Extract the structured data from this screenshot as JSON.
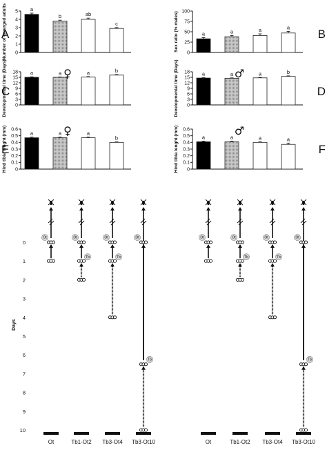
{
  "treatments": [
    "Ot",
    "Tb1-Ot2",
    "Tb3-Ot4",
    "Tb3-Ot10"
  ],
  "colors": {
    "bar_fills": [
      "#000000",
      "#c8c8c8",
      "#ffffff",
      "#ffffff"
    ],
    "stroke": "#222222"
  },
  "female_symbol": "♀",
  "male_symbol": "♂",
  "days_label": "Days",
  "day_ticks": [
    "0",
    "1",
    "2",
    "3",
    "4",
    "5",
    "6",
    "7",
    "8",
    "9",
    "10"
  ],
  "badges": {
    "ot": "Ot",
    "tb": "Tb"
  },
  "chart_data": [
    {
      "id": "A",
      "panel_label": "A",
      "type": "bar",
      "categories": [
        "Ot",
        "Tb1-Ot2",
        "Tb3-Ot4",
        "Tb3-Ot10"
      ],
      "values": [
        4.6,
        3.8,
        4.0,
        2.9
      ],
      "errors": [
        0.15,
        0.1,
        0.15,
        0.12
      ],
      "letters": [
        "a",
        "b",
        "ab",
        "c"
      ],
      "ylabel": "Number of emerged adults",
      "ylim": [
        0,
        5
      ],
      "yticks": [
        "0",
        "1",
        "2",
        "3",
        "4",
        "5"
      ],
      "symbol": ""
    },
    {
      "id": "B",
      "panel_label": "B",
      "type": "bar",
      "categories": [
        "Ot",
        "Tb1-Ot2",
        "Tb3-Ot4",
        "Tb3-Ot10"
      ],
      "values": [
        33,
        38,
        41,
        47
      ],
      "errors": [
        3,
        3,
        4,
        4
      ],
      "letters": [
        "a",
        "a",
        "a",
        "a"
      ],
      "ylabel": "Sex ratio (% males)",
      "ylim": [
        0,
        100
      ],
      "yticks": [
        "0",
        "25",
        "50",
        "75",
        "100"
      ],
      "symbol": ""
    },
    {
      "id": "C",
      "panel_label": "C",
      "type": "bar",
      "categories": [
        "Ot",
        "Tb1-Ot2",
        "Tb3-Ot4",
        "Tb3-Ot10"
      ],
      "values": [
        15.0,
        15.0,
        15.1,
        16.2
      ],
      "errors": [
        0.3,
        0.2,
        0.3,
        0.3
      ],
      "letters": [
        "a",
        "a",
        "a",
        "b"
      ],
      "ylabel": "Developmental time (Days)",
      "ylim": [
        0,
        18
      ],
      "yticks": [
        "0",
        "3",
        "6",
        "9",
        "12",
        "15",
        "18"
      ],
      "symbol": "female"
    },
    {
      "id": "D",
      "panel_label": "D",
      "type": "bar",
      "categories": [
        "Ot",
        "Tb1-Ot2",
        "Tb3-Ot4",
        "Tb3-Ot10"
      ],
      "values": [
        14.6,
        14.5,
        14.7,
        15.5
      ],
      "errors": [
        0.2,
        0.2,
        0.2,
        0.3
      ],
      "letters": [
        "a",
        "a",
        "a",
        "b"
      ],
      "ylabel": "Developmental time (Days)",
      "ylim": [
        0,
        18
      ],
      "yticks": [
        "0",
        "3",
        "6",
        "9",
        "12",
        "15",
        "18"
      ],
      "symbol": "male"
    },
    {
      "id": "E",
      "panel_label": "E",
      "type": "bar",
      "categories": [
        "Ot",
        "Tb1-Ot2",
        "Tb3-Ot4",
        "Tb3-Ot10"
      ],
      "values": [
        0.47,
        0.47,
        0.47,
        0.4
      ],
      "errors": [
        0.01,
        0.01,
        0.01,
        0.01
      ],
      "letters": [
        "a",
        "a",
        "a",
        "b"
      ],
      "ylabel": "Hind tibia lenght (mm)",
      "ylim": [
        0,
        0.6
      ],
      "yticks": [
        "0",
        "0.1",
        "0.2",
        "0.3",
        "0.4",
        "0.5",
        "0.6"
      ],
      "symbol": "female"
    },
    {
      "id": "F",
      "panel_label": "F",
      "type": "bar",
      "categories": [
        "Ot",
        "Tb1-Ot2",
        "Tb3-Ot4",
        "Tb3-Ot10"
      ],
      "values": [
        0.41,
        0.41,
        0.4,
        0.37
      ],
      "errors": [
        0.01,
        0.01,
        0.01,
        0.02
      ],
      "letters": [
        "a",
        "a",
        "a",
        "a"
      ],
      "ylabel": "Hind tibia lenght (mm)",
      "ylim": [
        0,
        0.6
      ],
      "yticks": [
        "0",
        "0.1",
        "0.2",
        "0.3",
        "0.4",
        "0.5",
        "0.6"
      ],
      "symbol": "male"
    }
  ],
  "timeline": {
    "type": "timeline",
    "day_range": [
      0,
      10
    ],
    "groups": [
      {
        "treatment": "Ot",
        "ot_day": 0,
        "tb_day": null
      },
      {
        "treatment": "Tb1-Ot2",
        "ot_day": 0,
        "tb_day": 1
      },
      {
        "treatment": "Tb3-Ot4",
        "ot_day": 0,
        "tb_day": 1
      },
      {
        "treatment": "Tb3-Ot10",
        "ot_day": 0,
        "tb_day": 6.5
      }
    ],
    "end_days": [
      1,
      2,
      4,
      10
    ]
  }
}
